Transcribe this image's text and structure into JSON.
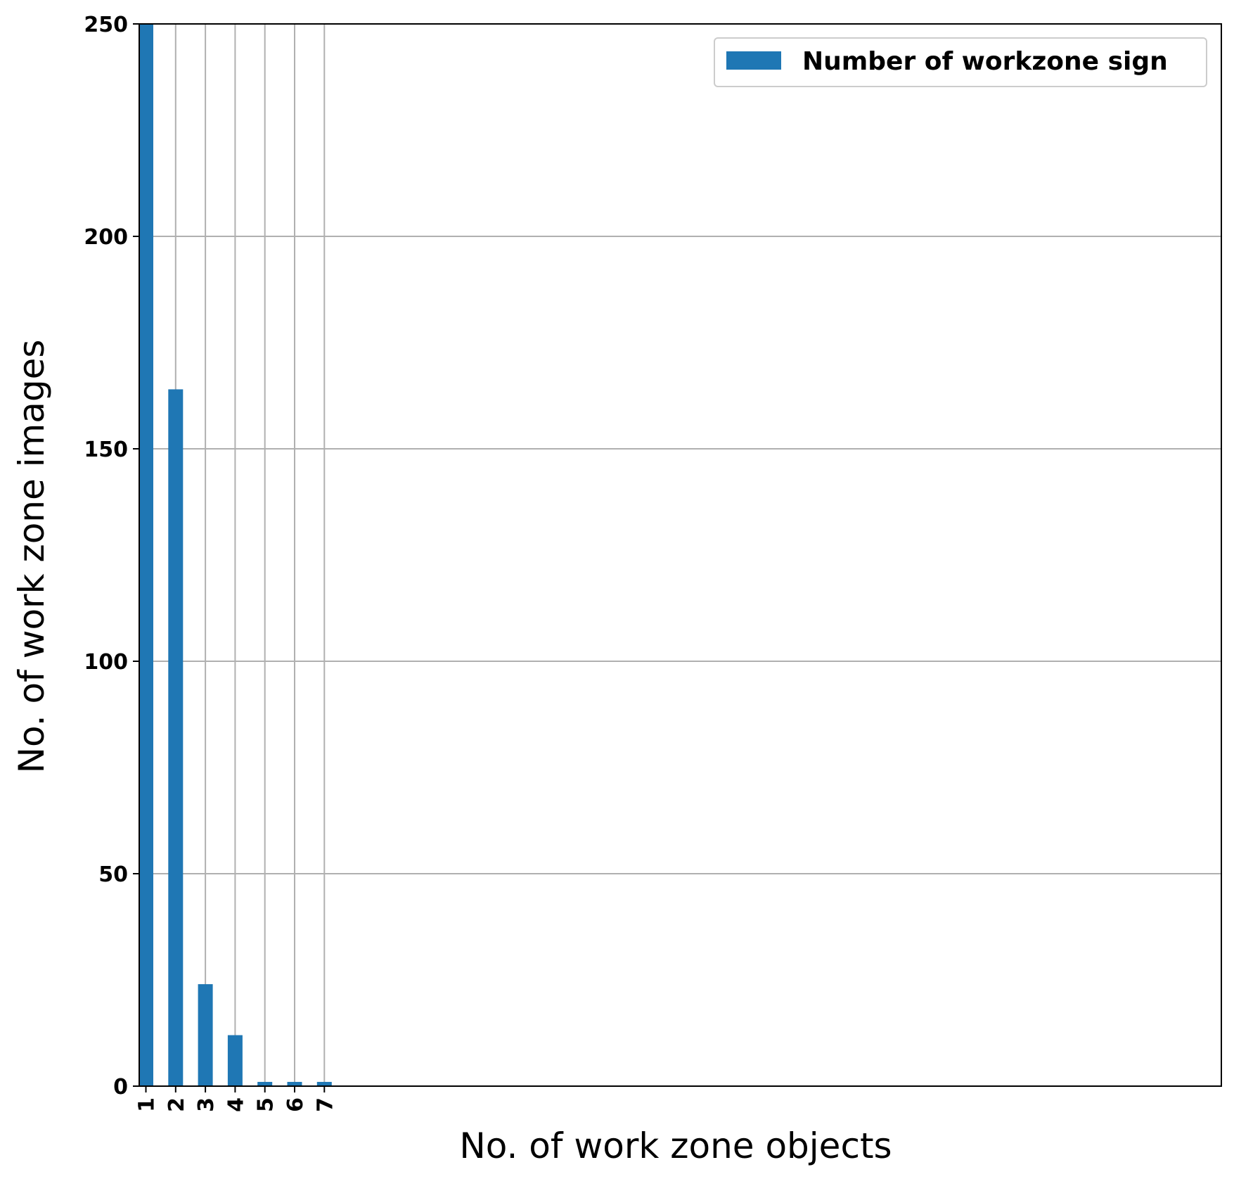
{
  "chart_data": {
    "type": "bar",
    "categories": [
      "1",
      "2",
      "3",
      "4",
      "5",
      "6",
      "7"
    ],
    "series": [
      {
        "name": "Number of workzone sign",
        "values": [
          250,
          164,
          24,
          12,
          1,
          1,
          1
        ],
        "color": "#1f77b4"
      }
    ],
    "xlabel": "No. of work zone objects",
    "ylabel": "No. of work zone images",
    "ylim": [
      0,
      250
    ],
    "yticks": [
      "0",
      "50",
      "100",
      "150",
      "200",
      "250"
    ],
    "grid": true,
    "legend_position": "top-right"
  }
}
